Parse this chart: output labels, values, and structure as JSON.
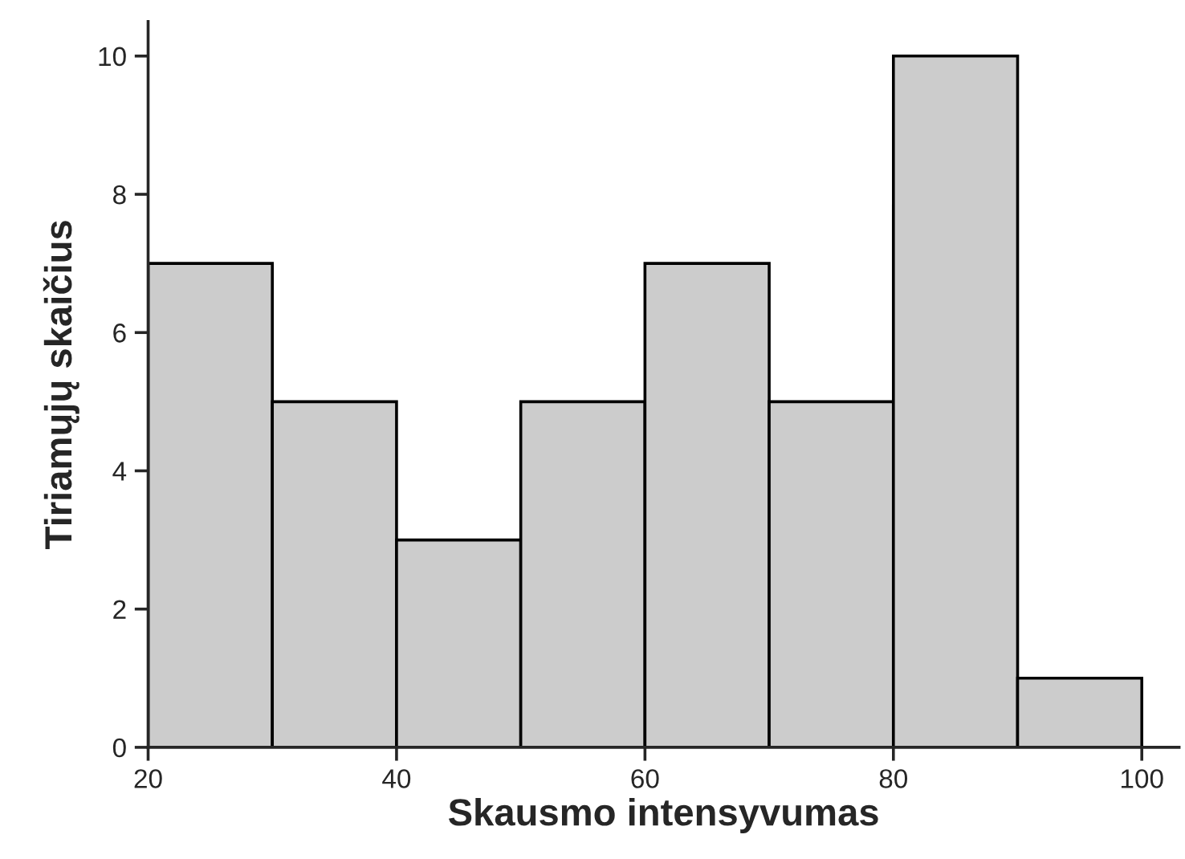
{
  "chart_data": {
    "type": "histogram",
    "xlabel": "Skausmo intensyvumas",
    "ylabel": "Tiriamųjų skaičius",
    "bins": [
      20,
      30,
      40,
      50,
      60,
      70,
      80,
      90,
      100
    ],
    "values": [
      7,
      5,
      3,
      5,
      7,
      5,
      10,
      1
    ],
    "color": "#cccccc",
    "xlim": [
      20,
      103
    ],
    "xticks": [
      20,
      40,
      60,
      80,
      100
    ],
    "ylim": [
      0,
      10.5
    ],
    "yticks": [
      0,
      2,
      4,
      6,
      8,
      10
    ],
    "grid": false,
    "legend": false
  }
}
